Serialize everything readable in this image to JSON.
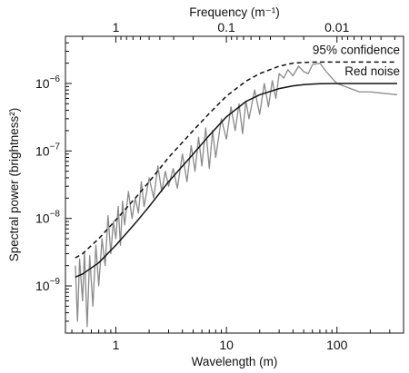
{
  "chart_data": {
    "type": "line",
    "xlabel": "Wavelength (m)",
    "x2label": "Frequency (m⁻¹)",
    "ylabel": "Spectral power (brightness²)",
    "x_scale": "log",
    "y_scale": "log",
    "xlim": [
      0.35,
      400
    ],
    "ylim": [
      2e-10,
      5e-06
    ],
    "x_ticks": [
      {
        "value": 1,
        "label": "1"
      },
      {
        "value": 10,
        "label": "10"
      },
      {
        "value": 100,
        "label": "100"
      }
    ],
    "x2_ticks": [
      {
        "value": 1,
        "label": "1"
      },
      {
        "value": 0.1,
        "label": "0.1"
      },
      {
        "value": 0.01,
        "label": "0.01"
      }
    ],
    "y_ticks": [
      {
        "value": 1e-09,
        "mantissa": "10",
        "exponent": "−9"
      },
      {
        "value": 1e-08,
        "mantissa": "10",
        "exponent": "−8"
      },
      {
        "value": 1e-07,
        "mantissa": "10",
        "exponent": "−7"
      },
      {
        "value": 1e-06,
        "mantissa": "10",
        "exponent": "−6"
      }
    ],
    "grid": false,
    "series": [
      {
        "name": "95% confidence",
        "style": "dashed",
        "color": "#111111",
        "x": [
          0.43,
          0.5,
          0.7,
          1,
          1.5,
          2,
          3,
          5,
          7,
          10,
          15,
          20,
          30,
          40,
          50,
          60,
          70,
          100,
          200,
          350
        ],
        "y": [
          2.6e-09,
          3e-09,
          5e-09,
          9.5e-09,
          2e-08,
          3.5e-08,
          8e-08,
          2e-07,
          3.6e-07,
          6.5e-07,
          1.08e-06,
          1.4e-06,
          1.8e-06,
          2e-06,
          2.05e-06,
          2.07e-06,
          2.08e-06,
          2.08e-06,
          2.08e-06,
          2.08e-06
        ]
      },
      {
        "name": "Red noise",
        "style": "solid",
        "color": "#111111",
        "x": [
          0.43,
          0.5,
          0.7,
          1,
          1.5,
          2,
          3,
          5,
          7,
          10,
          15,
          20,
          30,
          40,
          50,
          60,
          70,
          100,
          200,
          350
        ],
        "y": [
          1.35e-09,
          1.5e-09,
          2.2e-09,
          4e-09,
          8.5e-09,
          1.5e-08,
          3.5e-08,
          9e-08,
          1.7e-07,
          3.2e-07,
          5.4e-07,
          6.8e-07,
          8.4e-07,
          9.2e-07,
          9.6e-07,
          9.8e-07,
          9.9e-07,
          1e-06,
          1e-06,
          1e-06
        ]
      },
      {
        "name": "",
        "style": "solid",
        "color": "#8a8a8a",
        "x": [
          0.43,
          0.45,
          0.47,
          0.5,
          0.52,
          0.55,
          0.58,
          0.62,
          0.66,
          0.7,
          0.75,
          0.8,
          0.85,
          0.9,
          0.95,
          1.0,
          1.05,
          1.1,
          1.15,
          1.2,
          1.3,
          1.4,
          1.5,
          1.6,
          1.7,
          1.8,
          2.0,
          2.2,
          2.4,
          2.6,
          2.8,
          3.0,
          3.3,
          3.6,
          4.0,
          4.4,
          4.8,
          5.2,
          5.6,
          6.0,
          6.5,
          7.0,
          7.5,
          8.0,
          9.0,
          10,
          11,
          12,
          13,
          14,
          15,
          16,
          18,
          20,
          22,
          24,
          26,
          28,
          30,
          33,
          36,
          40,
          45,
          50,
          55,
          60,
          70,
          80,
          90,
          100,
          130,
          160,
          200,
          250,
          300,
          350
        ],
        "y": [
          2e-09,
          3e-10,
          2.5e-09,
          6e-10,
          3.2e-09,
          2.5e-10,
          2.8e-09,
          5e-10,
          4e-09,
          1e-09,
          5e-09,
          2e-09,
          1.1e-08,
          3e-09,
          9e-09,
          5e-09,
          1.5e-08,
          4e-09,
          1.8e-08,
          8e-09,
          2.5e-08,
          1e-08,
          2e-08,
          1.2e-08,
          3.5e-08,
          1.5e-08,
          4e-08,
          2e-08,
          6e-08,
          2.5e-08,
          5e-08,
          3e-08,
          5.5e-08,
          2.8e-08,
          9e-08,
          3.5e-08,
          1.2e-07,
          5e-08,
          1.6e-07,
          6e-08,
          2.2e-07,
          5.5e-08,
          2e-07,
          8e-08,
          3e-07,
          1.5e-07,
          4.5e-07,
          2e-07,
          5e-07,
          1.8e-07,
          5.5e-07,
          3e-07,
          8e-07,
          3.5e-07,
          1e-06,
          4.5e-07,
          1.1e-06,
          6e-07,
          1.4e-06,
          1.2e-06,
          1.6e-06,
          1.3e-06,
          1.8e-06,
          1.5e-06,
          1.4e-06,
          1.9e-06,
          2e-06,
          1.5e-06,
          1.2e-06,
          1e-06,
          8.5e-07,
          7.5e-07,
          7.5e-07,
          7.2e-07,
          7e-07,
          6.8e-07
        ]
      }
    ],
    "annotations": [
      {
        "text": "95% confidence",
        "series": 0
      },
      {
        "text": "Red noise",
        "series": 1
      }
    ]
  }
}
